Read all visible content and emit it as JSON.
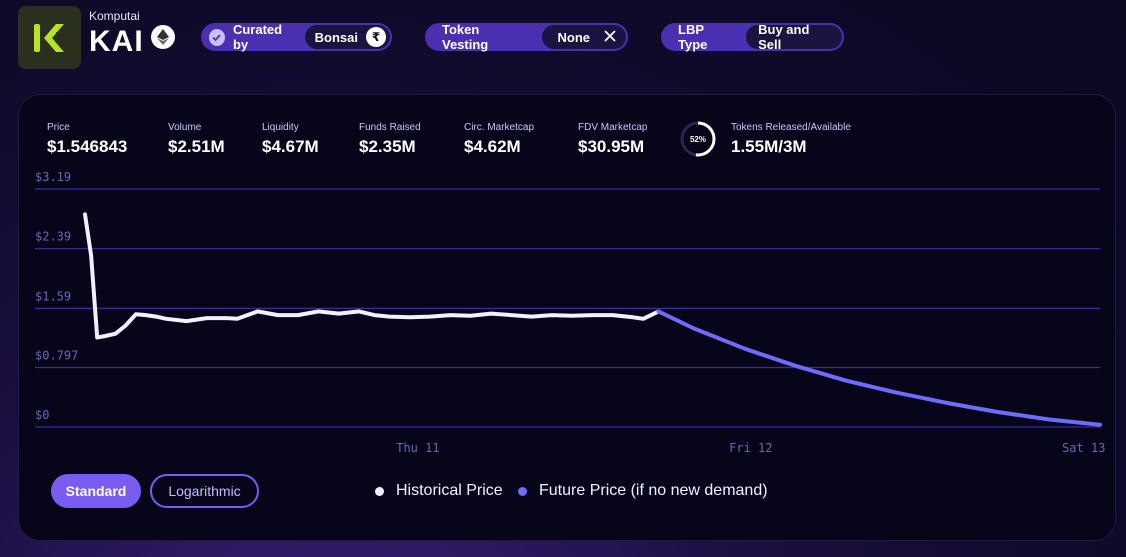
{
  "header": {
    "brand_sub": "Komputai",
    "brand_name": "KAI",
    "curated_label": "Curated by",
    "curated_value": "Bonsai",
    "vesting_label": "Token Vesting",
    "vesting_value": "None",
    "lbp_label": "LBP Type",
    "lbp_value": "Buy and Sell"
  },
  "stats": {
    "price_label": "Price",
    "price_value": "$1.546843",
    "volume_label": "Volume",
    "volume_value": "$2.51M",
    "liquidity_label": "Liquidity",
    "liquidity_value": "$4.67M",
    "funds_label": "Funds Raised",
    "funds_value": "$2.35M",
    "circ_label": "Circ. Marketcap",
    "circ_value": "$4.62M",
    "fdv_label": "FDV Marketcap",
    "fdv_value": "$30.95M",
    "released_pct_text": "52%",
    "released_pct": 0.52,
    "released_label": "Tokens Released/Available",
    "released_value": "1.55M/3M"
  },
  "controls": {
    "standard_label": "Standard",
    "log_label": "Logarithmic"
  },
  "colors": {
    "historical": "#f2f0ff",
    "future": "#6f6bff",
    "grid": "#3a2f9a"
  },
  "chart_data": {
    "type": "line",
    "yticks": [
      0,
      0.797,
      1.59,
      2.39,
      3.19
    ],
    "ytick_labels": [
      "$0",
      "$0.797",
      "$1.59",
      "$2.39",
      "$3.19"
    ],
    "ylim": [
      0,
      3.19
    ],
    "xlim": [
      0,
      100
    ],
    "xticks": [
      32.8,
      65.6,
      98.4
    ],
    "xtick_labels": [
      "Thu 11",
      "Fri 12",
      "Sat 13"
    ],
    "legend": [
      "Historical Price",
      "Future Price (if no new demand)"
    ],
    "series": [
      {
        "name": "Historical Price",
        "x": [
          0,
          0.6,
          1.2,
          2,
          3,
          4,
          5,
          6,
          7,
          8,
          10,
          12,
          14,
          15,
          17,
          19,
          21,
          23,
          25,
          27,
          28.5,
          30,
          32,
          34,
          36,
          38,
          40,
          42,
          44,
          46,
          48,
          50,
          52,
          54,
          55,
          56.5
        ],
        "y": [
          2.85,
          2.3,
          1.2,
          1.22,
          1.25,
          1.36,
          1.51,
          1.5,
          1.48,
          1.45,
          1.42,
          1.46,
          1.46,
          1.45,
          1.55,
          1.5,
          1.5,
          1.55,
          1.52,
          1.55,
          1.5,
          1.48,
          1.47,
          1.48,
          1.5,
          1.49,
          1.52,
          1.5,
          1.48,
          1.5,
          1.49,
          1.5,
          1.5,
          1.47,
          1.45,
          1.55
        ]
      },
      {
        "name": "Future Price (if no new demand)",
        "x": [
          56.5,
          60,
          65,
          70,
          75,
          80,
          85,
          90,
          95,
          100
        ],
        "y": [
          1.55,
          1.32,
          1.05,
          0.82,
          0.62,
          0.46,
          0.32,
          0.2,
          0.1,
          0.03
        ]
      }
    ]
  }
}
